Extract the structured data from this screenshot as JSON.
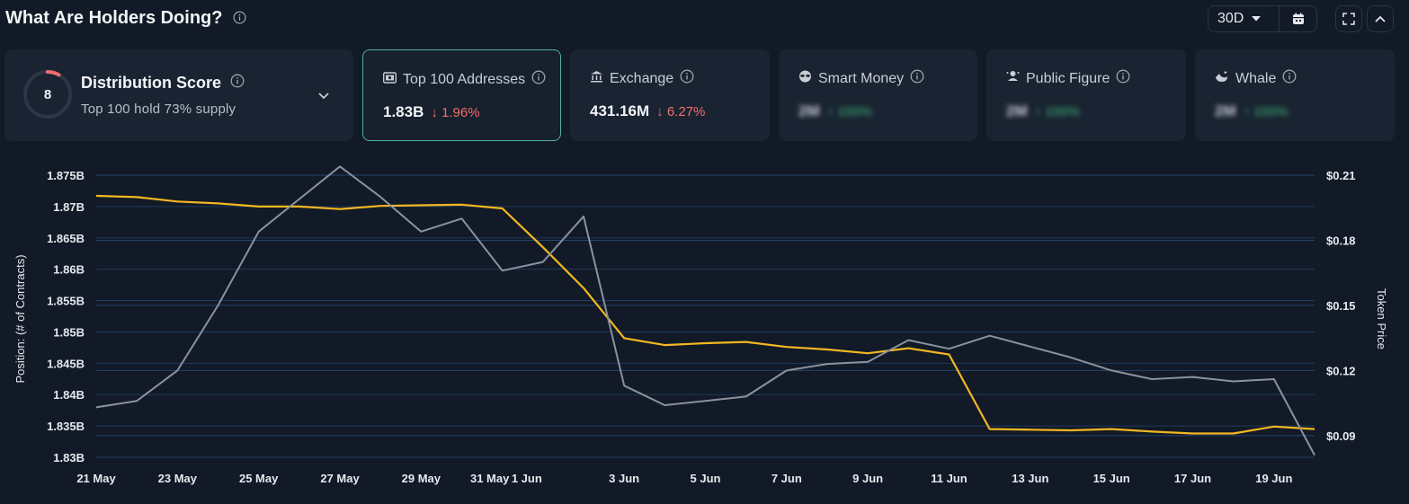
{
  "header": {
    "title": "What Are Holders Doing?",
    "range": "30D"
  },
  "distribution": {
    "score": "8",
    "title": "Distribution Score",
    "subtitle": "Top 100 hold 73% supply"
  },
  "cards": [
    {
      "title": "Top 100 Addresses",
      "value": "1.83B",
      "delta": "↓ 1.96%",
      "icon": "wallet-icon",
      "active": true
    },
    {
      "title": "Exchange",
      "value": "431.16M",
      "delta": "↓ 6.27%",
      "icon": "bank-icon",
      "active": false
    },
    {
      "title": "Smart Money",
      "value": "2M",
      "delta": "↑ 100%",
      "icon": "sunglasses-icon",
      "active": false
    },
    {
      "title": "Public Figure",
      "value": "2M",
      "delta": "↑ 100%",
      "icon": "megaphone-icon",
      "active": false
    },
    {
      "title": "Whale",
      "value": "2M",
      "delta": "↑ 100%",
      "icon": "whale-icon",
      "active": false
    }
  ],
  "colors": {
    "position_line": "#f5b721",
    "price_line": "#8a929e",
    "active_border": "#4fb39a",
    "down": "#f26d6d",
    "up": "#3fbf7f"
  },
  "chart_data": {
    "type": "line",
    "ylabel": "Position: (# of Contracts)",
    "y2label": "Token Price",
    "ylim": [
      1.83,
      1.875
    ],
    "y2lim": [
      0.08,
      0.21
    ],
    "yticks": [
      "1.83B",
      "1.835B",
      "1.84B",
      "1.845B",
      "1.85B",
      "1.855B",
      "1.86B",
      "1.865B",
      "1.87B",
      "1.875B"
    ],
    "y2ticks": [
      "$0.09",
      "$0.12",
      "$0.15",
      "$0.18",
      "$0.21"
    ],
    "xticks": [
      "21 May",
      "23 May",
      "25 May",
      "27 May",
      "29 May",
      "31 May",
      "1 Jun",
      "3 Jun",
      "5 Jun",
      "7 Jun",
      "9 Jun",
      "11 Jun",
      "13 Jun",
      "15 Jun",
      "17 Jun",
      "19 Jun"
    ],
    "x": [
      "21 May",
      "22 May",
      "23 May",
      "24 May",
      "25 May",
      "26 May",
      "27 May",
      "28 May",
      "29 May",
      "30 May",
      "31 May",
      "1 Jun",
      "2 Jun",
      "3 Jun",
      "4 Jun",
      "5 Jun",
      "6 Jun",
      "7 Jun",
      "8 Jun",
      "9 Jun",
      "10 Jun",
      "11 Jun",
      "12 Jun",
      "13 Jun",
      "14 Jun",
      "15 Jun",
      "16 Jun",
      "17 Jun",
      "18 Jun",
      "19 Jun",
      "20 Jun"
    ],
    "series": [
      {
        "name": "Position",
        "axis": "left",
        "values": [
          1.8717,
          1.8715,
          1.8708,
          1.8705,
          1.87,
          1.87,
          1.8696,
          1.8701,
          1.8702,
          1.8703,
          1.8697,
          1.8635,
          1.857,
          1.849,
          1.8479,
          1.8482,
          1.8484,
          1.8476,
          1.8472,
          1.8466,
          1.8474,
          1.8464,
          1.8345,
          1.8344,
          1.8343,
          1.8345,
          1.8341,
          1.8338,
          1.8338,
          1.8349,
          1.8345
        ]
      },
      {
        "name": "Token Price",
        "axis": "right",
        "values": [
          0.103,
          0.106,
          0.12,
          0.15,
          0.184,
          0.199,
          0.214,
          0.2,
          0.184,
          0.19,
          0.166,
          0.17,
          0.191,
          0.113,
          0.104,
          0.106,
          0.108,
          0.12,
          0.123,
          0.124,
          0.134,
          0.13,
          0.136,
          0.131,
          0.126,
          0.12,
          0.116,
          0.117,
          0.115,
          0.116,
          0.081
        ]
      }
    ]
  }
}
